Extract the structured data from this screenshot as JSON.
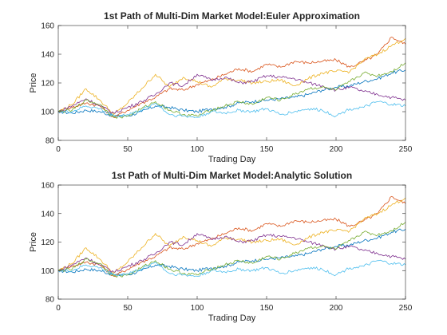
{
  "chart_data": [
    {
      "type": "line",
      "title": "1st Path of Multi-Dim Market Model:Euler Approximation",
      "xlabel": "Trading Day",
      "ylabel": "Price",
      "xlim": [
        0,
        250
      ],
      "ylim": [
        80,
        160
      ],
      "xticks": [
        "0",
        "50",
        "100",
        "150",
        "200",
        "250"
      ],
      "yticks": [
        "80",
        "100",
        "120",
        "140",
        "160"
      ],
      "grid": false,
      "legend": "none",
      "series": [
        {
          "color": "#0072BD",
          "x": [
            0,
            10,
            20,
            30,
            40,
            50,
            60,
            70,
            80,
            90,
            100,
            110,
            120,
            130,
            140,
            150,
            160,
            170,
            180,
            190,
            200,
            210,
            220,
            230,
            240,
            250
          ],
          "values": [
            100,
            99,
            101,
            100,
            97,
            97,
            100,
            104,
            103,
            101,
            100,
            102,
            103,
            106,
            107,
            108,
            109,
            110,
            112,
            115,
            117,
            118,
            121,
            123,
            127,
            129
          ]
        },
        {
          "color": "#D95319",
          "x": [
            0,
            10,
            20,
            30,
            40,
            50,
            60,
            70,
            80,
            90,
            100,
            110,
            120,
            130,
            140,
            150,
            160,
            170,
            180,
            190,
            200,
            210,
            220,
            230,
            240,
            250
          ],
          "values": [
            100,
            103,
            106,
            104,
            96,
            101,
            106,
            110,
            116,
            115,
            119,
            122,
            126,
            130,
            128,
            133,
            131,
            135,
            134,
            135,
            136,
            131,
            135,
            140,
            152,
            147
          ]
        },
        {
          "color": "#EDB120",
          "x": [
            0,
            10,
            20,
            30,
            40,
            50,
            60,
            70,
            80,
            90,
            100,
            110,
            120,
            130,
            140,
            150,
            160,
            170,
            180,
            190,
            200,
            210,
            220,
            230,
            240,
            250
          ],
          "values": [
            100,
            105,
            116,
            108,
            98,
            106,
            116,
            126,
            117,
            124,
            121,
            117,
            123,
            122,
            120,
            121,
            122,
            118,
            123,
            127,
            128,
            128,
            136,
            140,
            146,
            151
          ]
        },
        {
          "color": "#7E2F8E",
          "x": [
            0,
            10,
            20,
            30,
            40,
            50,
            60,
            70,
            80,
            90,
            100,
            110,
            120,
            130,
            140,
            150,
            160,
            170,
            180,
            190,
            200,
            210,
            220,
            230,
            240,
            250
          ],
          "values": [
            100,
            104,
            109,
            104,
            99,
            103,
            107,
            112,
            120,
            118,
            126,
            122,
            124,
            120,
            121,
            125,
            124,
            123,
            120,
            118,
            115,
            117,
            114,
            112,
            110,
            108
          ]
        },
        {
          "color": "#77AC30",
          "x": [
            0,
            10,
            20,
            30,
            40,
            50,
            60,
            70,
            80,
            90,
            100,
            110,
            120,
            130,
            140,
            150,
            160,
            170,
            180,
            190,
            200,
            210,
            220,
            230,
            240,
            250
          ],
          "values": [
            100,
            101,
            108,
            105,
            96,
            97,
            102,
            107,
            101,
            98,
            97,
            101,
            104,
            107,
            105,
            110,
            108,
            112,
            116,
            117,
            115,
            121,
            127,
            125,
            128,
            134
          ]
        },
        {
          "color": "#4DBEEE",
          "x": [
            0,
            10,
            20,
            30,
            40,
            50,
            60,
            70,
            80,
            90,
            100,
            110,
            120,
            130,
            140,
            150,
            160,
            170,
            180,
            190,
            200,
            210,
            220,
            230,
            240,
            250
          ],
          "values": [
            100,
            100,
            104,
            102,
            97,
            98,
            101,
            106,
            98,
            97,
            96,
            100,
            99,
            101,
            100,
            102,
            98,
            100,
            102,
            101,
            97,
            102,
            103,
            107,
            105,
            104
          ]
        }
      ]
    },
    {
      "type": "line",
      "title": "1st Path of Multi-Dim Market Model:Analytic Solution",
      "xlabel": "Trading Day",
      "ylabel": "Price",
      "xlim": [
        0,
        250
      ],
      "ylim": [
        80,
        160
      ],
      "xticks": [
        "0",
        "50",
        "100",
        "150",
        "200",
        "250"
      ],
      "yticks": [
        "80",
        "100",
        "120",
        "140",
        "160"
      ],
      "grid": false,
      "legend": "none",
      "series": [
        {
          "color": "#0072BD",
          "x": [
            0,
            10,
            20,
            30,
            40,
            50,
            60,
            70,
            80,
            90,
            100,
            110,
            120,
            130,
            140,
            150,
            160,
            170,
            180,
            190,
            200,
            210,
            220,
            230,
            240,
            250
          ],
          "values": [
            100,
            99,
            101,
            100,
            97,
            97,
            100,
            104,
            103,
            101,
            100,
            102,
            103,
            106,
            107,
            108,
            109,
            110,
            112,
            115,
            117,
            118,
            121,
            123,
            127,
            129
          ]
        },
        {
          "color": "#D95319",
          "x": [
            0,
            10,
            20,
            30,
            40,
            50,
            60,
            70,
            80,
            90,
            100,
            110,
            120,
            130,
            140,
            150,
            160,
            170,
            180,
            190,
            200,
            210,
            220,
            230,
            240,
            250
          ],
          "values": [
            100,
            103,
            106,
            104,
            96,
            101,
            106,
            110,
            116,
            115,
            119,
            122,
            126,
            130,
            128,
            133,
            131,
            135,
            134,
            135,
            136,
            131,
            135,
            140,
            152,
            147
          ]
        },
        {
          "color": "#EDB120",
          "x": [
            0,
            10,
            20,
            30,
            40,
            50,
            60,
            70,
            80,
            90,
            100,
            110,
            120,
            130,
            140,
            150,
            160,
            170,
            180,
            190,
            200,
            210,
            220,
            230,
            240,
            250
          ],
          "values": [
            100,
            105,
            116,
            108,
            98,
            106,
            116,
            126,
            117,
            124,
            121,
            117,
            123,
            122,
            120,
            121,
            122,
            118,
            123,
            127,
            128,
            128,
            136,
            140,
            146,
            151
          ]
        },
        {
          "color": "#7E2F8E",
          "x": [
            0,
            10,
            20,
            30,
            40,
            50,
            60,
            70,
            80,
            90,
            100,
            110,
            120,
            130,
            140,
            150,
            160,
            170,
            180,
            190,
            200,
            210,
            220,
            230,
            240,
            250
          ],
          "values": [
            100,
            104,
            109,
            104,
            99,
            103,
            107,
            112,
            120,
            118,
            126,
            122,
            124,
            120,
            121,
            125,
            124,
            123,
            120,
            118,
            115,
            117,
            114,
            112,
            110,
            108
          ]
        },
        {
          "color": "#77AC30",
          "x": [
            0,
            10,
            20,
            30,
            40,
            50,
            60,
            70,
            80,
            90,
            100,
            110,
            120,
            130,
            140,
            150,
            160,
            170,
            180,
            190,
            200,
            210,
            220,
            230,
            240,
            250
          ],
          "values": [
            100,
            101,
            108,
            105,
            96,
            97,
            102,
            107,
            101,
            98,
            97,
            101,
            104,
            107,
            105,
            110,
            108,
            112,
            116,
            117,
            115,
            121,
            127,
            125,
            128,
            134
          ]
        },
        {
          "color": "#4DBEEE",
          "x": [
            0,
            10,
            20,
            30,
            40,
            50,
            60,
            70,
            80,
            90,
            100,
            110,
            120,
            130,
            140,
            150,
            160,
            170,
            180,
            190,
            200,
            210,
            220,
            230,
            240,
            250
          ],
          "values": [
            100,
            100,
            104,
            102,
            97,
            98,
            101,
            106,
            98,
            97,
            96,
            100,
            99,
            101,
            100,
            102,
            98,
            100,
            102,
            101,
            97,
            102,
            103,
            107,
            105,
            104
          ]
        }
      ]
    }
  ]
}
